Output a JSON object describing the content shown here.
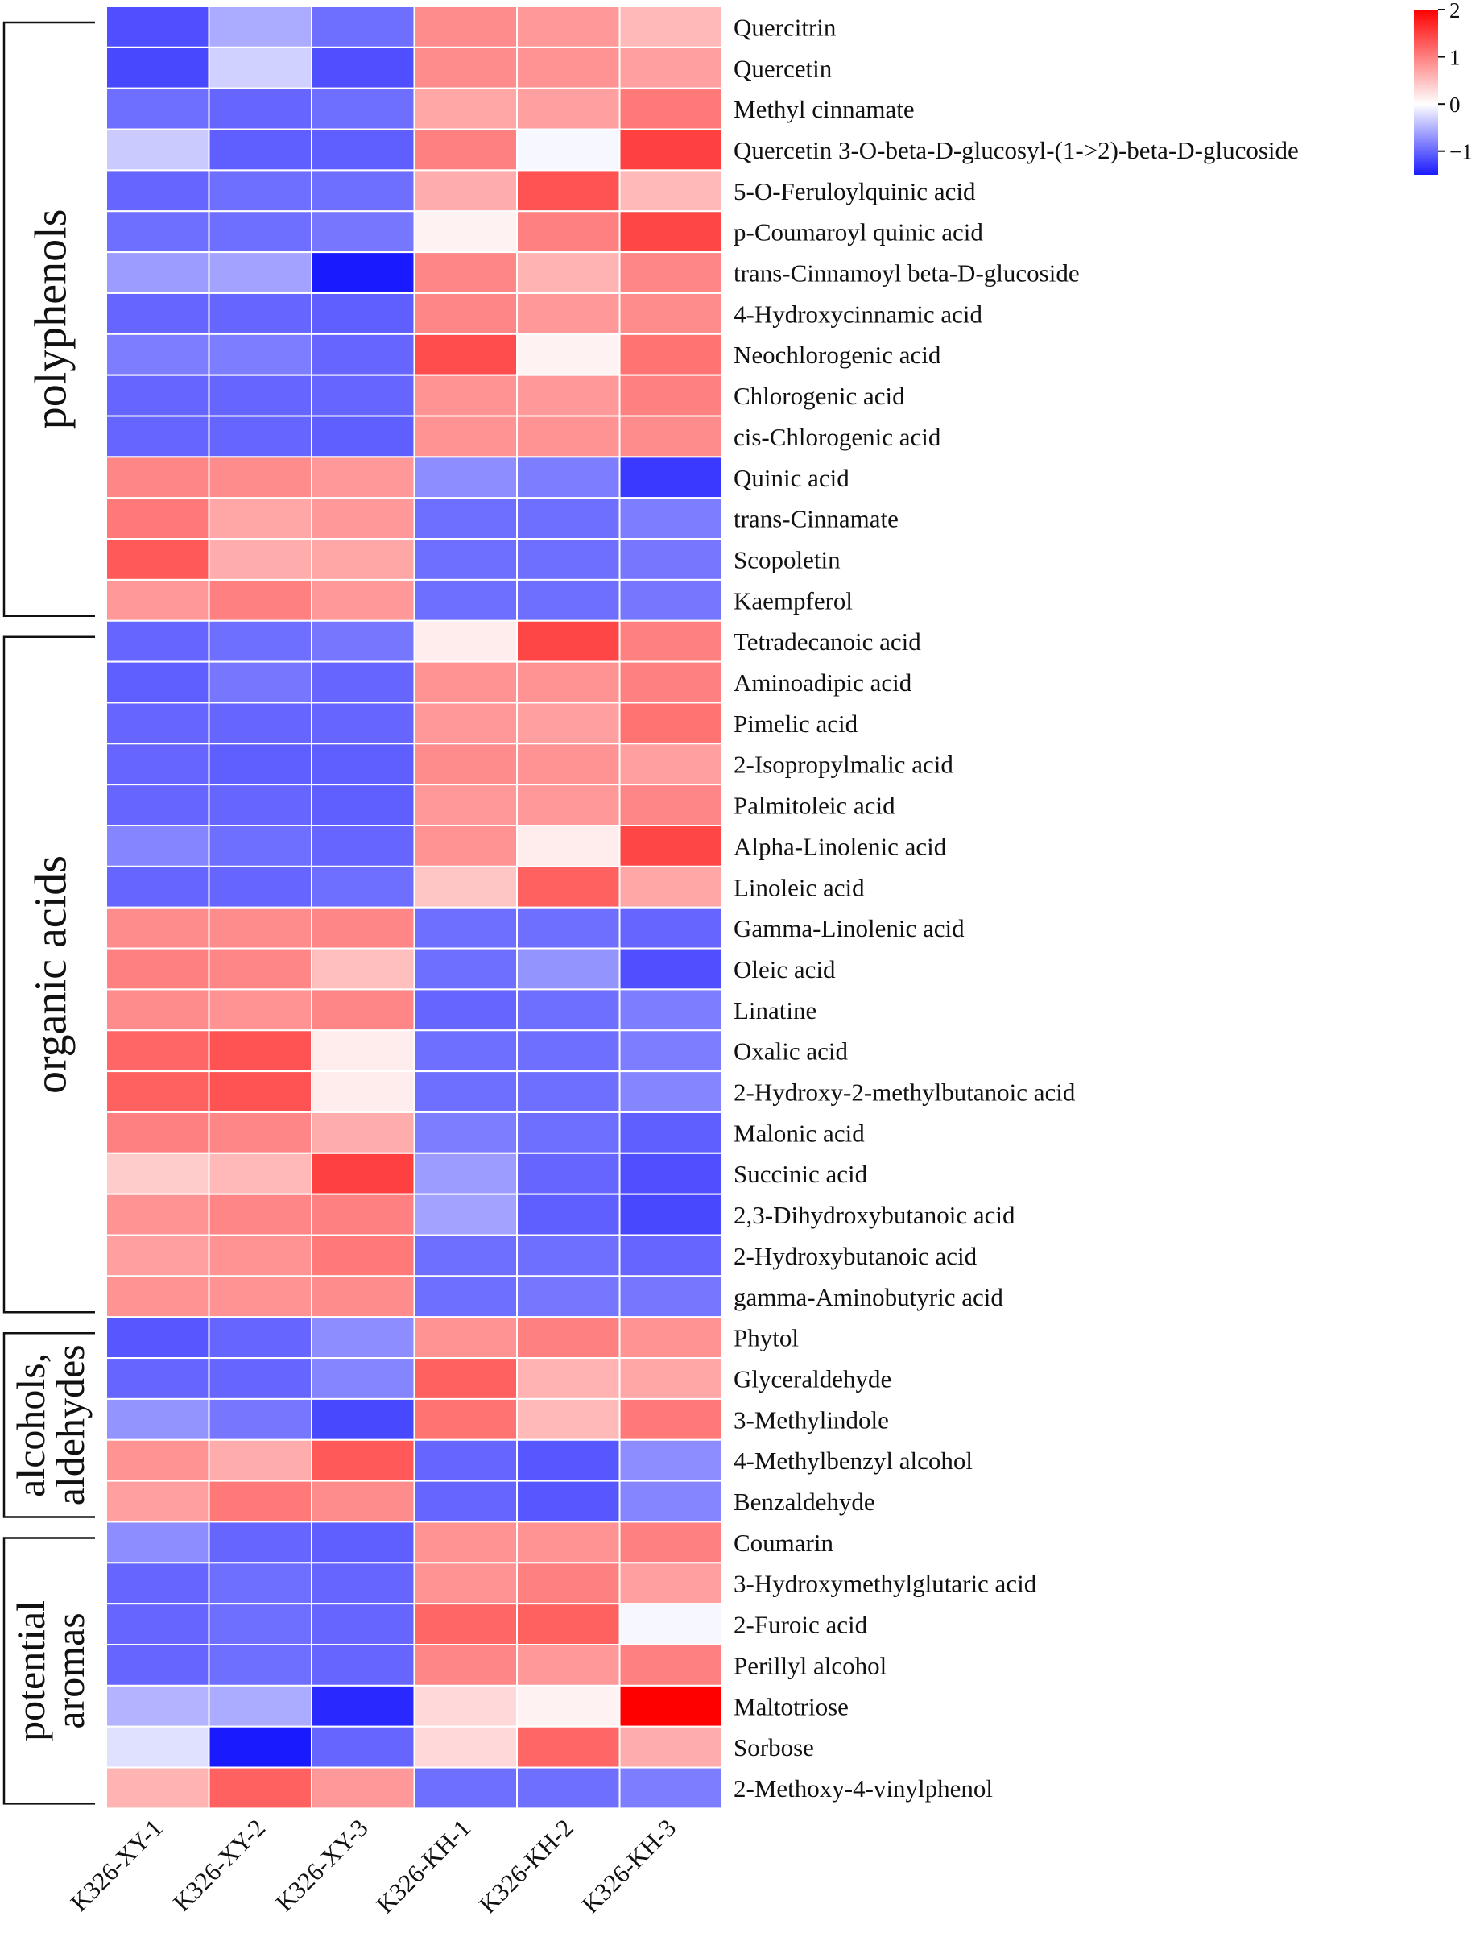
{
  "chart_data": {
    "type": "heatmap",
    "title": "",
    "columns": [
      "K326-XY-1",
      "K326-XY-2",
      "K326-XY-3",
      "K326-KH-1",
      "K326-KH-2",
      "K326-KH-3"
    ],
    "rows": [
      {
        "name": "Quercitrin",
        "values": [
          -1.15,
          -0.55,
          -0.95,
          0.9,
          0.8,
          0.55
        ]
      },
      {
        "name": "Quercetin",
        "values": [
          -1.2,
          -0.3,
          -1.15,
          0.9,
          0.85,
          0.75
        ]
      },
      {
        "name": "Methyl cinnamate",
        "values": [
          -0.95,
          -1.0,
          -0.95,
          0.7,
          0.75,
          1.05
        ]
      },
      {
        "name": "Quercetin 3-O-beta-D-glucosyl-(1->2)-beta-D-glucoside",
        "values": [
          -0.35,
          -1.05,
          -1.05,
          1.0,
          -0.05,
          1.5
        ]
      },
      {
        "name": "5-O-Feruloylquinic acid",
        "values": [
          -1.0,
          -0.95,
          -0.95,
          0.65,
          1.35,
          0.55
        ]
      },
      {
        "name": "p-Coumaroyl quinic acid",
        "values": [
          -0.95,
          -0.95,
          -0.9,
          0.1,
          1.0,
          1.45
        ]
      },
      {
        "name": "trans-Cinnamoyl beta-D-glucoside",
        "values": [
          -0.65,
          -0.6,
          -1.5,
          0.95,
          0.6,
          0.95
        ]
      },
      {
        "name": "4-Hydroxycinnamic acid",
        "values": [
          -1.0,
          -1.0,
          -1.05,
          0.95,
          0.8,
          0.9
        ]
      },
      {
        "name": "Neochlorogenic acid",
        "values": [
          -0.85,
          -0.85,
          -1.0,
          1.4,
          0.1,
          1.1
        ]
      },
      {
        "name": "Chlorogenic acid",
        "values": [
          -1.0,
          -1.0,
          -1.0,
          0.85,
          0.8,
          1.0
        ]
      },
      {
        "name": "cis-Chlorogenic acid",
        "values": [
          -1.0,
          -1.0,
          -1.05,
          0.85,
          0.85,
          0.9
        ]
      },
      {
        "name": "Quinic acid",
        "values": [
          0.95,
          0.9,
          0.8,
          -0.75,
          -0.85,
          -1.3
        ]
      },
      {
        "name": "trans-Cinnamate",
        "values": [
          1.05,
          0.7,
          0.8,
          -0.95,
          -0.95,
          -0.85
        ]
      },
      {
        "name": "Scopoletin",
        "values": [
          1.3,
          0.65,
          0.7,
          -0.95,
          -0.95,
          -0.9
        ]
      },
      {
        "name": "Kaempferol",
        "values": [
          0.8,
          1.0,
          0.8,
          -0.95,
          -0.95,
          -0.9
        ]
      },
      {
        "name": "Tetradecanoic acid",
        "values": [
          -1.0,
          -0.95,
          -0.9,
          0.15,
          1.45,
          1.0
        ]
      },
      {
        "name": "Aminoadipic acid",
        "values": [
          -1.05,
          -0.9,
          -1.0,
          0.85,
          0.85,
          1.0
        ]
      },
      {
        "name": "Pimelic acid",
        "values": [
          -1.0,
          -1.0,
          -1.0,
          0.8,
          0.75,
          1.1
        ]
      },
      {
        "name": "2-Isopropylmalic acid",
        "values": [
          -1.0,
          -1.05,
          -1.05,
          0.9,
          0.85,
          0.75
        ]
      },
      {
        "name": "Palmitoleic acid",
        "values": [
          -1.0,
          -1.0,
          -1.05,
          0.8,
          0.8,
          0.95
        ]
      },
      {
        "name": "Alpha-Linolenic acid",
        "values": [
          -0.8,
          -0.95,
          -1.0,
          0.85,
          0.15,
          1.45
        ]
      },
      {
        "name": "Linoleic acid",
        "values": [
          -1.0,
          -1.0,
          -0.95,
          0.45,
          1.25,
          0.7
        ]
      },
      {
        "name": "Gamma-Linolenic acid",
        "values": [
          0.9,
          0.9,
          0.95,
          -0.95,
          -0.95,
          -1.0
        ]
      },
      {
        "name": "Oleic acid",
        "values": [
          1.0,
          0.95,
          0.5,
          -0.95,
          -0.7,
          -1.15
        ]
      },
      {
        "name": "Linatine",
        "values": [
          0.9,
          0.85,
          0.95,
          -1.0,
          -0.95,
          -0.85
        ]
      },
      {
        "name": "Oxalic acid",
        "values": [
          1.2,
          1.35,
          0.15,
          -0.95,
          -0.95,
          -0.85
        ]
      },
      {
        "name": "2-Hydroxy-2-methylbutanoic acid",
        "values": [
          1.25,
          1.35,
          0.15,
          -0.95,
          -0.95,
          -0.8
        ]
      },
      {
        "name": "Malonic acid",
        "values": [
          1.0,
          0.95,
          0.65,
          -0.85,
          -0.95,
          -1.05
        ]
      },
      {
        "name": "Succinic acid",
        "values": [
          0.4,
          0.55,
          1.5,
          -0.65,
          -1.0,
          -1.15
        ]
      },
      {
        "name": "2,3-Dihydroxybutanoic acid",
        "values": [
          0.85,
          0.95,
          1.0,
          -0.6,
          -1.05,
          -1.2
        ]
      },
      {
        "name": "2-Hydroxybutanoic acid",
        "values": [
          0.75,
          0.85,
          1.05,
          -0.95,
          -0.95,
          -1.0
        ]
      },
      {
        "name": "gamma-Aminobutyric acid",
        "values": [
          0.85,
          0.85,
          0.9,
          -0.95,
          -0.9,
          -0.9
        ]
      },
      {
        "name": "Phytol",
        "values": [
          -1.1,
          -1.0,
          -0.75,
          0.85,
          1.0,
          0.85
        ]
      },
      {
        "name": "Glyceraldehyde",
        "values": [
          -1.0,
          -1.0,
          -0.8,
          1.25,
          0.6,
          0.7
        ]
      },
      {
        "name": "3-Methylindole",
        "values": [
          -0.7,
          -0.9,
          -1.2,
          1.1,
          0.55,
          1.05
        ]
      },
      {
        "name": "4-Methylbenzyl alcohol",
        "values": [
          0.85,
          0.65,
          1.3,
          -1.0,
          -1.1,
          -0.75
        ]
      },
      {
        "name": "Benzaldehyde",
        "values": [
          0.75,
          1.05,
          0.9,
          -1.0,
          -1.1,
          -0.8
        ]
      },
      {
        "name": "Coumarin",
        "values": [
          -0.75,
          -1.0,
          -1.05,
          0.85,
          0.85,
          1.0
        ]
      },
      {
        "name": "3-Hydroxymethylglutaric acid",
        "values": [
          -1.0,
          -0.95,
          -1.0,
          0.85,
          1.0,
          0.75
        ]
      },
      {
        "name": "2-Furoic acid",
        "values": [
          -1.0,
          -0.95,
          -1.0,
          1.2,
          1.25,
          -0.05
        ]
      },
      {
        "name": "Perillyl alcohol",
        "values": [
          -1.0,
          -0.95,
          -1.0,
          0.95,
          0.8,
          1.0
        ]
      },
      {
        "name": "Maltotriose",
        "values": [
          -0.5,
          -0.55,
          -1.4,
          0.3,
          0.1,
          2.0
        ]
      },
      {
        "name": "Sorbose",
        "values": [
          -0.2,
          -1.5,
          -1.0,
          0.3,
          1.2,
          0.65
        ]
      },
      {
        "name": "2-Methoxy-4-vinylphenol",
        "values": [
          0.6,
          1.25,
          0.8,
          -0.95,
          -0.95,
          -0.85
        ]
      }
    ],
    "groups": [
      {
        "label": [
          "polyphenols"
        ],
        "start": 0,
        "end": 14
      },
      {
        "label": [
          "organic acids"
        ],
        "start": 15,
        "end": 31
      },
      {
        "label": [
          "alcohols,",
          "aldehydes"
        ],
        "start": 32,
        "end": 36
      },
      {
        "label": [
          "potential",
          "aromas"
        ],
        "start": 37,
        "end": 43
      }
    ],
    "colorbar": {
      "min": -1.5,
      "max": 2,
      "ticks": [
        2,
        1,
        0,
        -1
      ],
      "tick_labels": [
        "2",
        "1",
        "0",
        "−1"
      ]
    },
    "colors": {
      "low": "#1a1aff",
      "mid": "#ffffff",
      "high": "#ff0000",
      "grid": "#ffffff"
    }
  }
}
